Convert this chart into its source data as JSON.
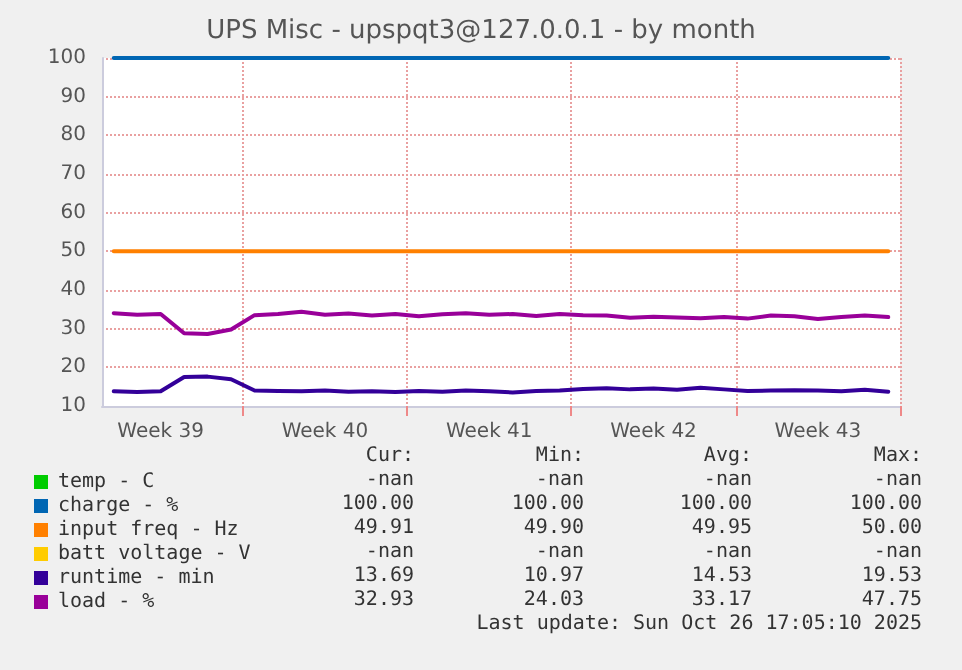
{
  "chart_data": {
    "type": "line",
    "title": "UPS Misc - upspqt3@127.0.0.1 - by month",
    "categories": [
      null,
      null,
      "Week 39",
      null,
      null,
      null,
      null,
      null,
      null,
      "Week 40",
      null,
      null,
      null,
      null,
      null,
      null,
      "Week 41",
      null,
      null,
      null,
      null,
      null,
      null,
      "Week 42",
      null,
      null,
      null,
      null,
      null,
      null,
      "Week 43",
      null,
      null,
      null
    ],
    "ylim": [
      10,
      100
    ],
    "yticks": [
      10,
      20,
      30,
      40,
      50,
      60,
      70,
      80,
      90,
      100
    ],
    "grid": true,
    "legend": "bottom left",
    "marker": "none",
    "line_style": "solid",
    "series": [
      {
        "name": "temp - C",
        "color": "#00cc00",
        "values": [
          null,
          null,
          null,
          null,
          null,
          null,
          null,
          null,
          null,
          null,
          null,
          null,
          null,
          null,
          null,
          null,
          null,
          null,
          null,
          null,
          null,
          null,
          null,
          null,
          null,
          null,
          null,
          null,
          null,
          null,
          null,
          null,
          null,
          null
        ]
      },
      {
        "name": "charge - %",
        "color": "#0066b3",
        "values": [
          100,
          100,
          100,
          100,
          100,
          100,
          100,
          100,
          100,
          100,
          100,
          100,
          100,
          100,
          100,
          100,
          100,
          100,
          100,
          100,
          100,
          100,
          100,
          100,
          100,
          100,
          100,
          100,
          100,
          100,
          100,
          100,
          100,
          100
        ]
      },
      {
        "name": "input freq - Hz",
        "color": "#ff8000",
        "values": [
          50,
          50,
          50,
          50,
          50,
          50,
          50,
          50,
          50,
          50,
          50,
          50,
          50,
          50,
          50,
          50,
          50,
          50,
          50,
          50,
          50,
          50,
          50,
          50,
          50,
          50,
          50,
          50,
          50,
          50,
          50,
          50,
          50,
          50
        ]
      },
      {
        "name": "batt voltage - V",
        "color": "#ffcc00",
        "values": [
          null,
          null,
          null,
          null,
          null,
          null,
          null,
          null,
          null,
          null,
          null,
          null,
          null,
          null,
          null,
          null,
          null,
          null,
          null,
          null,
          null,
          null,
          null,
          null,
          null,
          null,
          null,
          null,
          null,
          null,
          null,
          null,
          null,
          null
        ]
      },
      {
        "name": "runtime - min",
        "color": "#330099",
        "values": [
          13.8,
          13.6,
          13.8,
          17.5,
          17.6,
          16.9,
          14.0,
          13.9,
          13.8,
          14.0,
          13.7,
          13.8,
          13.6,
          13.9,
          13.7,
          14.0,
          13.8,
          13.5,
          13.9,
          14.0,
          14.4,
          14.6,
          14.3,
          14.5,
          14.2,
          14.7,
          14.3,
          13.9,
          14.0,
          14.1,
          14.0,
          13.8,
          14.2,
          13.7
        ]
      },
      {
        "name": "load - %",
        "color": "#990099",
        "values": [
          34,
          33.6,
          33.8,
          28.8,
          28.6,
          29.8,
          33.5,
          33.8,
          34.4,
          33.6,
          33.9,
          33.4,
          33.8,
          33.2,
          33.7,
          34,
          33.6,
          33.8,
          33.3,
          33.8,
          33.5,
          33.4,
          32.8,
          33.1,
          32.9,
          32.7,
          33.0,
          32.6,
          33.4,
          33.2,
          32.5,
          33.0,
          33.4,
          33.0
        ]
      }
    ],
    "annotations": [
      "Cur:",
      "Min:",
      "Avg:",
      "Max:",
      "-nan",
      "-nan",
      "-nan",
      "-nan",
      "100.00",
      "100.00",
      "100.00",
      "100.00",
      "49.91",
      "49.90",
      "49.95",
      "50.00",
      "-nan",
      "-nan",
      "-nan",
      "-nan",
      "13.69",
      "10.97",
      "14.53",
      "19.53",
      "32.93",
      "24.03",
      "33.17",
      "47.75",
      "Last update: Sun Oct 26 17:05:10 2025"
    ]
  }
}
